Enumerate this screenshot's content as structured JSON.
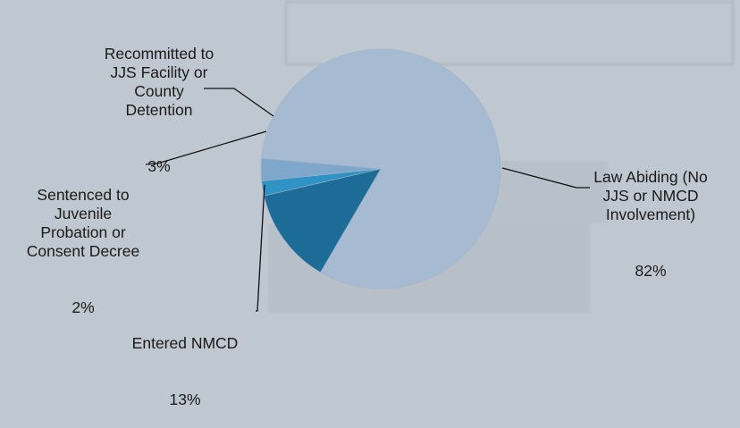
{
  "chart_data": {
    "type": "pie",
    "slices": [
      {
        "label": "Law Abiding (No\nJJS or NMCD\nInvolvement)",
        "pct_text": "82%",
        "value": 82,
        "color": "#a6bbd2"
      },
      {
        "label": "Entered NMCD",
        "pct_text": "13%",
        "value": 13,
        "color": "#1d6c98"
      },
      {
        "label": "Sentenced to\nJuvenile\nProbation or\nConsent Decree",
        "pct_text": "2%",
        "value": 2,
        "color": "#2f94c5"
      },
      {
        "label": "Recommitted to\nJJS Facility or\nCounty\nDetention",
        "pct_text": "3%",
        "value": 3,
        "color": "#7fa7cb"
      }
    ],
    "legend": "none",
    "labels": "outside-with-leader-lines"
  }
}
